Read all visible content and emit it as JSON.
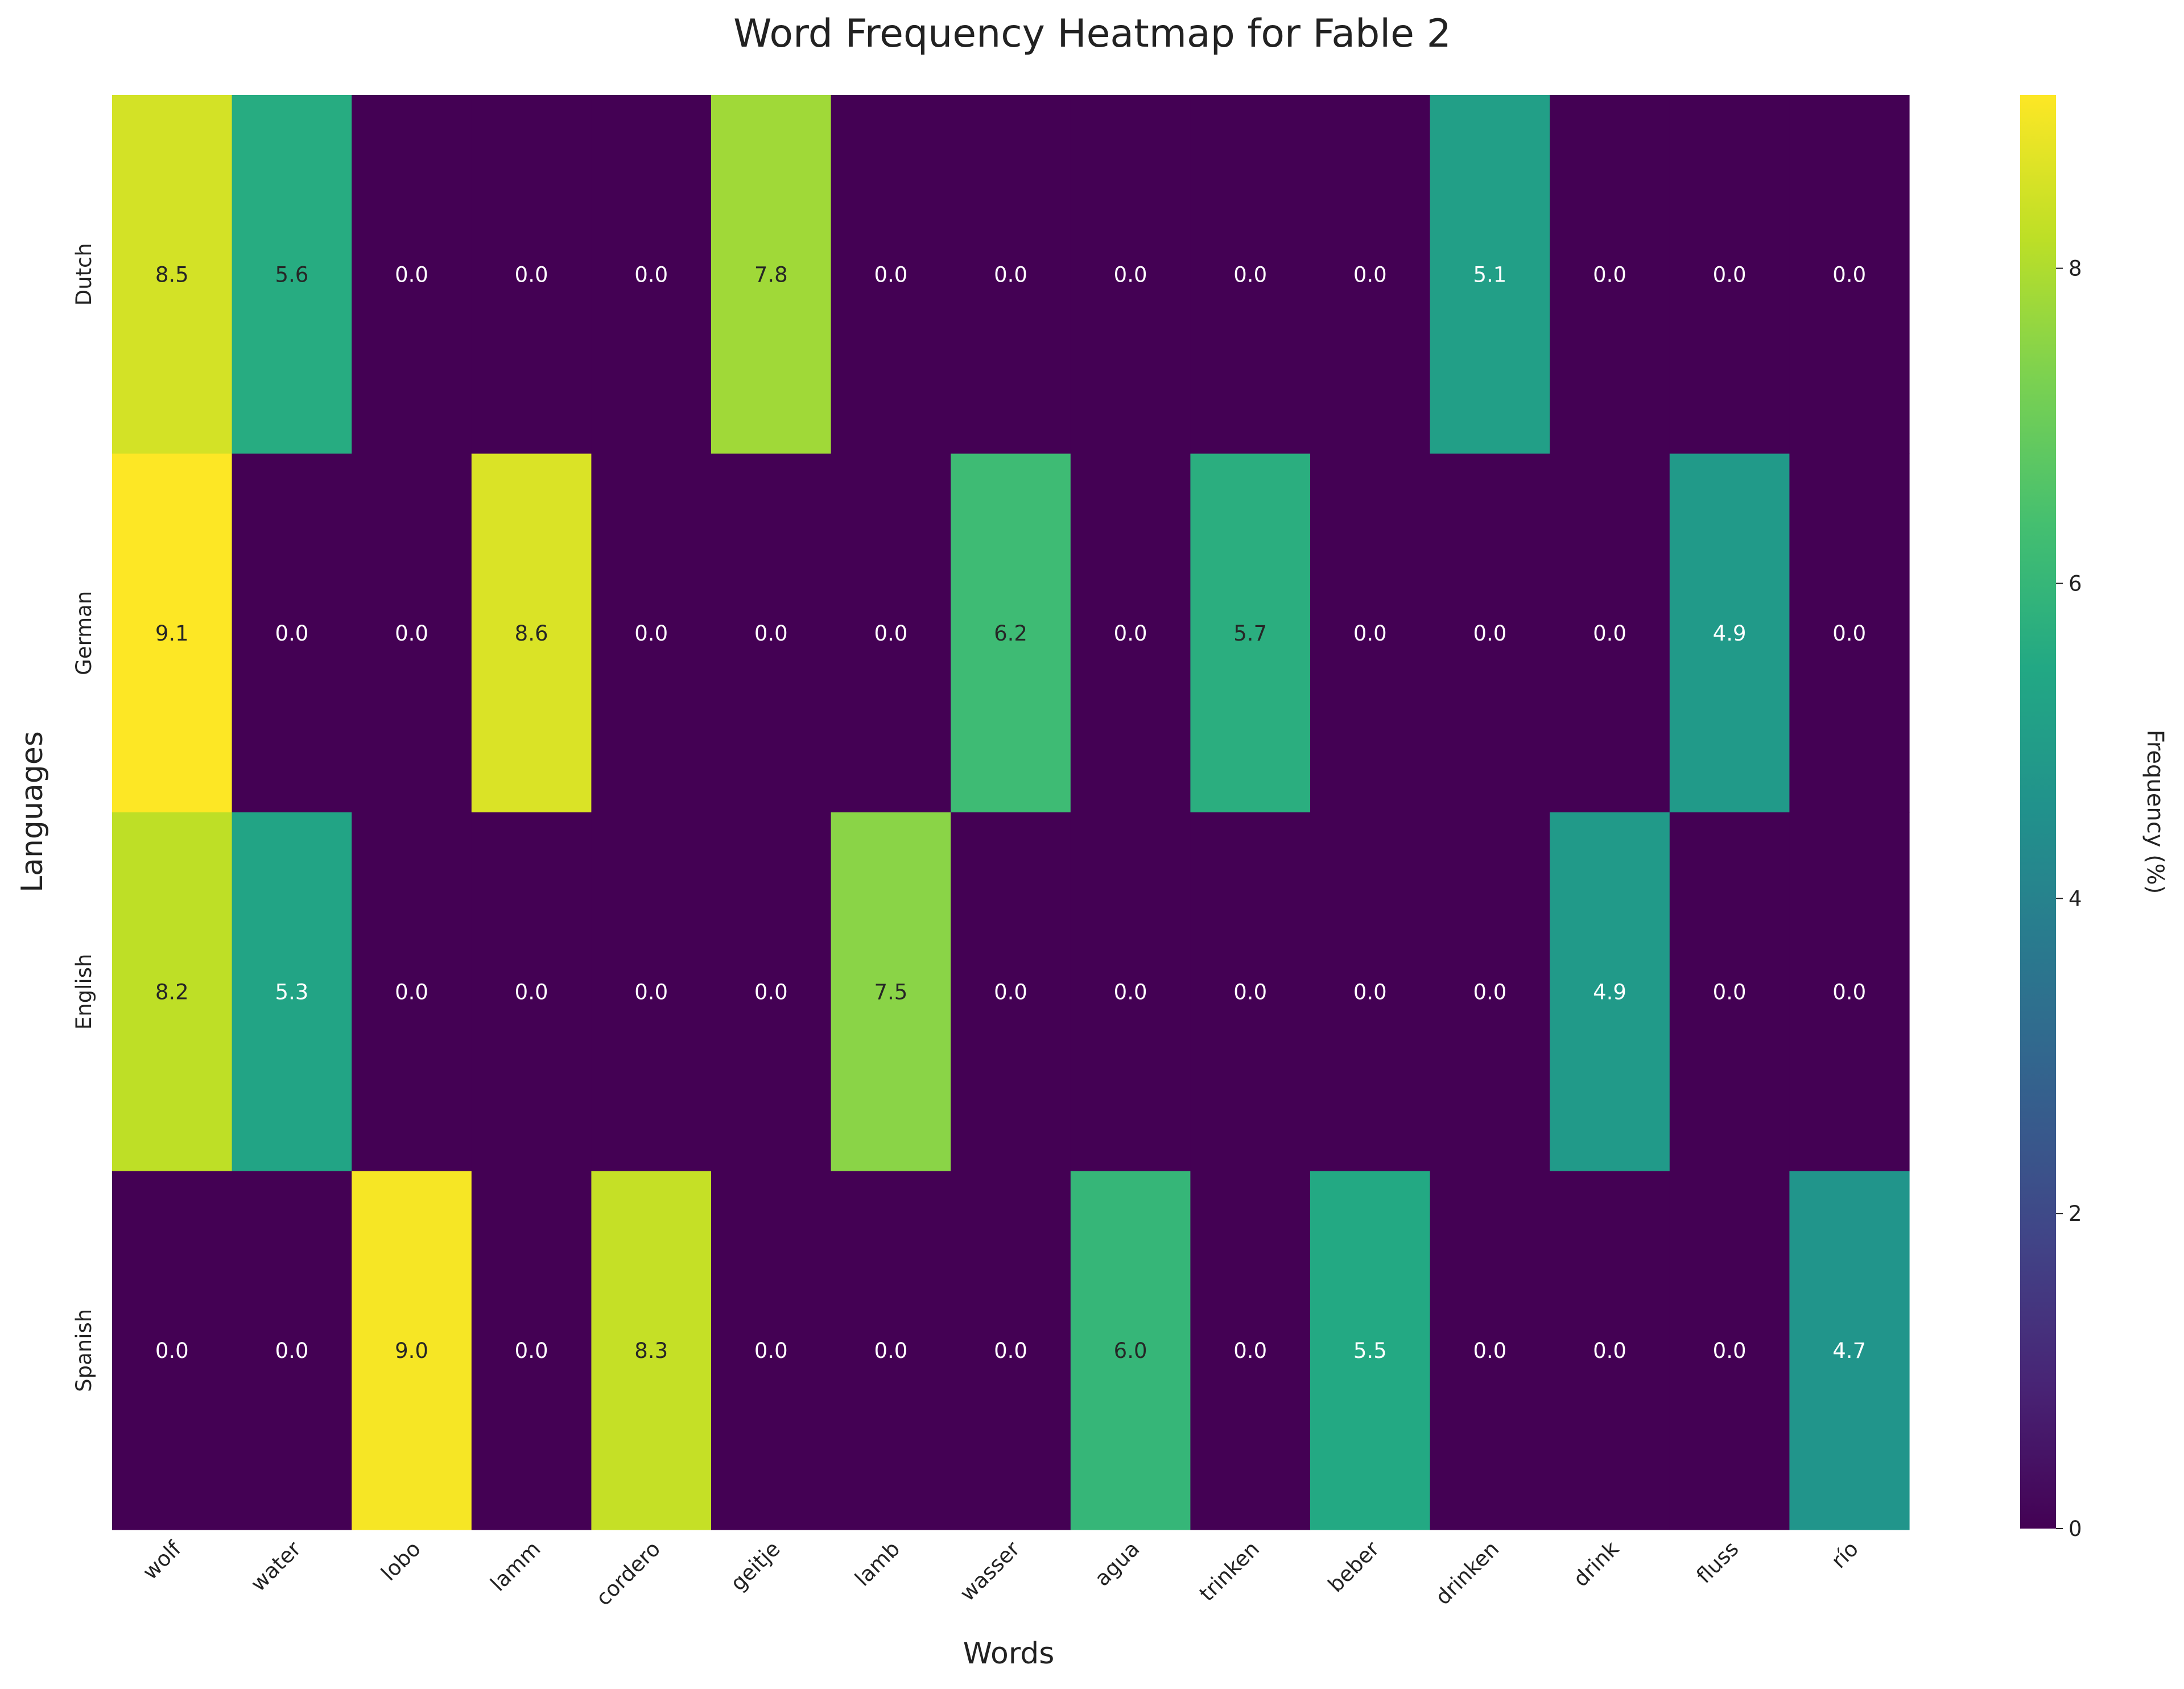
{
  "chart_data": {
    "type": "heatmap",
    "title": "Word Frequency Heatmap for Fable 2",
    "xlabel": "Words",
    "ylabel": "Languages",
    "colorbar_label": "Frequency (%)",
    "colormap": "viridis",
    "vmin": 0,
    "vmax": 9.1,
    "colorbar_ticks": [
      "0",
      "2",
      "4",
      "6",
      "8"
    ],
    "colorbar_tick_values": [
      0,
      2,
      4,
      6,
      8
    ],
    "columns": [
      "wolf",
      "water",
      "lobo",
      "lamm",
      "cordero",
      "geitje",
      "lamb",
      "wasser",
      "agua",
      "trinken",
      "beber",
      "drinken",
      "drink",
      "fluss",
      "río"
    ],
    "rows": [
      "Dutch",
      "German",
      "English",
      "Spanish"
    ],
    "values": [
      [
        8.5,
        5.6,
        0.0,
        0.0,
        0.0,
        7.8,
        0.0,
        0.0,
        0.0,
        0.0,
        0.0,
        5.1,
        0.0,
        0.0,
        0.0
      ],
      [
        9.1,
        0.0,
        0.0,
        8.6,
        0.0,
        0.0,
        0.0,
        6.2,
        0.0,
        5.7,
        0.0,
        0.0,
        0.0,
        4.9,
        0.0
      ],
      [
        8.2,
        5.3,
        0.0,
        0.0,
        0.0,
        0.0,
        7.5,
        0.0,
        0.0,
        0.0,
        0.0,
        0.0,
        4.9,
        0.0,
        0.0
      ],
      [
        0.0,
        0.0,
        9.0,
        0.0,
        8.3,
        0.0,
        0.0,
        0.0,
        6.0,
        0.0,
        5.5,
        0.0,
        0.0,
        0.0,
        4.7
      ]
    ],
    "annotation_format": "0.0",
    "grid": false
  }
}
